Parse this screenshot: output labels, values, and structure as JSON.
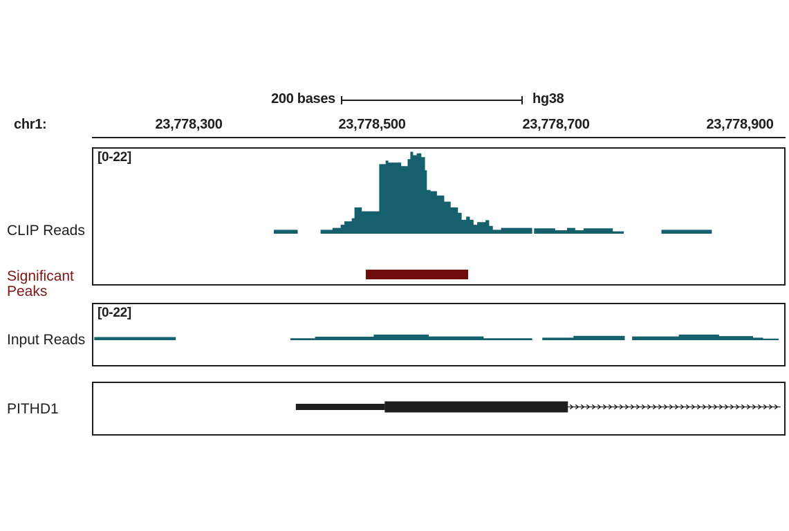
{
  "header": {
    "scale_label": "200 bases",
    "assembly": "hg38",
    "chrom_label": "chr1:"
  },
  "axis": {
    "tick_labels": [
      "23,778,300",
      "23,778,500",
      "23,778,700",
      "23,778,900"
    ]
  },
  "tracks": {
    "clip": {
      "label": "CLIP Reads",
      "range": "[0-22]"
    },
    "peaks": {
      "label_line1": "Significant",
      "label_line2": "Peaks"
    },
    "input": {
      "label": "Input Reads",
      "range": "[0-22]"
    },
    "gene": {
      "label": "PITHD1"
    }
  },
  "colors": {
    "signal": "#16606e",
    "peak_bar": "#700c0c",
    "peak_label": "#7d1517",
    "text": "#1e1e1e"
  },
  "chart_data": {
    "type": "area",
    "subtype": "genome-browser-tracks",
    "assembly": "hg38",
    "chromosome": "chr1",
    "view": {
      "start_bp": 23778195,
      "end_bp": 23778949
    },
    "scale_bar_bases": 200,
    "ticks": [
      {
        "bp": 23778300,
        "label": "23,778,300"
      },
      {
        "bp": 23778500,
        "label": "23,778,500"
      },
      {
        "bp": 23778700,
        "label": "23,778,700"
      },
      {
        "bp": 23778900,
        "label": "23,778,900"
      }
    ],
    "tracks": [
      {
        "name": "CLIP Reads",
        "type": "area",
        "y_range": [
          0,
          22
        ],
        "segments": [
          [
            23778392,
            23778418,
            1.0
          ],
          [
            23778443,
            23778456,
            1.0
          ],
          [
            23778456,
            23778465,
            1.5
          ],
          [
            23778465,
            23778469,
            2.3
          ],
          [
            23778469,
            23778477,
            3.2
          ],
          [
            23778477,
            23778480,
            4.0
          ],
          [
            23778480,
            23778488,
            6.8
          ],
          [
            23778488,
            23778507,
            5.8
          ],
          [
            23778507,
            23778514,
            18.0
          ],
          [
            23778514,
            23778517,
            18.9
          ],
          [
            23778517,
            23778531,
            18.4
          ],
          [
            23778531,
            23778538,
            17.5
          ],
          [
            23778538,
            23778541,
            19.3
          ],
          [
            23778541,
            23778544,
            21.2
          ],
          [
            23778544,
            23778548,
            20.3
          ],
          [
            23778548,
            23778553,
            20.8
          ],
          [
            23778553,
            23778557,
            19.8
          ],
          [
            23778557,
            23778559,
            16.4
          ],
          [
            23778559,
            23778563,
            11.3
          ],
          [
            23778563,
            23778570,
            11.0
          ],
          [
            23778570,
            23778578,
            9.9
          ],
          [
            23778578,
            23778585,
            8.3
          ],
          [
            23778585,
            23778593,
            6.8
          ],
          [
            23778593,
            23778597,
            5.4
          ],
          [
            23778597,
            23778602,
            3.6
          ],
          [
            23778602,
            23778606,
            4.4
          ],
          [
            23778606,
            23778610,
            3.6
          ],
          [
            23778610,
            23778614,
            2.3
          ],
          [
            23778614,
            23778623,
            3.0
          ],
          [
            23778623,
            23778627,
            3.5
          ],
          [
            23778627,
            23778631,
            2.0
          ],
          [
            23778631,
            23778640,
            1.0
          ],
          [
            23778640,
            23778674,
            1.5
          ],
          [
            23778676,
            23778699,
            1.4
          ],
          [
            23778699,
            23778712,
            0.9
          ],
          [
            23778712,
            23778721,
            1.5
          ],
          [
            23778721,
            23778730,
            0.9
          ],
          [
            23778730,
            23778762,
            1.4
          ],
          [
            23778762,
            23778774,
            0.6
          ],
          [
            23778815,
            23778870,
            1.0
          ]
        ]
      },
      {
        "name": "Significant Peaks",
        "type": "interval",
        "intervals": [
          [
            23778492,
            23778604
          ]
        ]
      },
      {
        "name": "Input Reads",
        "type": "area",
        "y_range": [
          0,
          22
        ],
        "segments": [
          [
            23778196,
            23778285,
            1.0
          ],
          [
            23778410,
            23778437,
            0.6
          ],
          [
            23778437,
            23778501,
            1.1
          ],
          [
            23778501,
            23778561,
            1.8
          ],
          [
            23778561,
            23778621,
            1.2
          ],
          [
            23778621,
            23778674,
            0.6
          ],
          [
            23778685,
            23778719,
            0.8
          ],
          [
            23778719,
            23778775,
            1.4
          ],
          [
            23778783,
            23778834,
            1.2
          ],
          [
            23778834,
            23778878,
            1.8
          ],
          [
            23778878,
            23778915,
            1.3
          ],
          [
            23778915,
            23778926,
            0.8
          ],
          [
            23778926,
            23778943,
            0.5
          ]
        ]
      },
      {
        "name": "PITHD1",
        "type": "gene-model",
        "strand": "+",
        "thin_exon": [
          23778416,
          23778513
        ],
        "thick_exon": [
          23778513,
          23778713
        ],
        "intron_arrows": [
          23778713,
          23778945
        ]
      }
    ]
  }
}
